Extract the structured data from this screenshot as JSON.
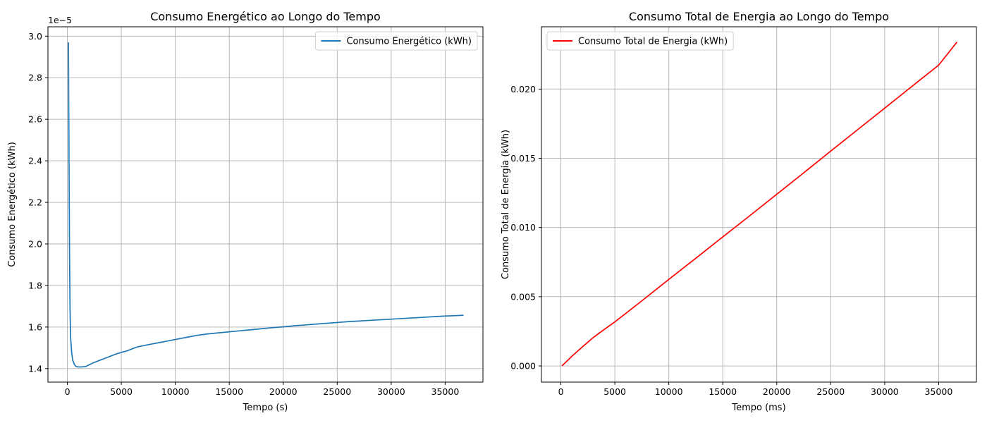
{
  "chart_data": [
    {
      "type": "line",
      "title": "Consumo Energético ao Longo do Tempo",
      "xlabel": "Tempo (s)",
      "ylabel": "Consumo Energético (kWh)",
      "offset_text": "1e−5",
      "xlim": [
        -1800,
        38500
      ],
      "ylim": [
        1.335e-05,
        3.045e-05
      ],
      "xticks": [
        0,
        5000,
        10000,
        15000,
        20000,
        25000,
        30000,
        35000
      ],
      "xtick_labels": [
        "0",
        "5000",
        "10000",
        "15000",
        "20000",
        "25000",
        "30000",
        "35000"
      ],
      "yticks": [
        1.4e-05,
        1.6e-05,
        1.8e-05,
        2e-05,
        2.2e-05,
        2.4e-05,
        2.6e-05,
        2.8e-05,
        3e-05
      ],
      "ytick_labels": [
        "1.4",
        "1.6",
        "1.8",
        "2.0",
        "2.2",
        "2.4",
        "2.6",
        "2.8",
        "3.0"
      ],
      "grid": true,
      "legend_position": "top-right",
      "series": [
        {
          "name": "Consumo Energético (kWh)",
          "color": "#1f77b4",
          "x": [
            100,
            150,
            200,
            250,
            300,
            400,
            500,
            650,
            800,
            1000,
            1300,
            1700,
            2000,
            2500,
            3000,
            3500,
            4000,
            4500,
            5000,
            5500,
            6000,
            6500,
            7000,
            7500,
            8000,
            8500,
            9000,
            10000,
            11000,
            12000,
            13000,
            14000,
            15000,
            16000,
            17000,
            18000,
            19000,
            20000,
            21000,
            22000,
            23000,
            24000,
            25000,
            26000,
            27000,
            28000,
            29000,
            30000,
            31000,
            32000,
            33000,
            34000,
            35000,
            36000,
            36700
          ],
          "y": [
            2.97e-05,
            2.45e-05,
            1.95e-05,
            1.68e-05,
            1.55e-05,
            1.475e-05,
            1.44e-05,
            1.42e-05,
            1.41e-05,
            1.408e-05,
            1.408e-05,
            1.41e-05,
            1.418e-05,
            1.43e-05,
            1.44e-05,
            1.45e-05,
            1.46e-05,
            1.47e-05,
            1.478e-05,
            1.485e-05,
            1.495e-05,
            1.505e-05,
            1.51e-05,
            1.515e-05,
            1.52e-05,
            1.525e-05,
            1.53e-05,
            1.54e-05,
            1.55e-05,
            1.56e-05,
            1.567e-05,
            1.572e-05,
            1.577e-05,
            1.582e-05,
            1.587e-05,
            1.592e-05,
            1.597e-05,
            1.601e-05,
            1.606e-05,
            1.61e-05,
            1.614e-05,
            1.618e-05,
            1.622e-05,
            1.626e-05,
            1.629e-05,
            1.632e-05,
            1.635e-05,
            1.638e-05,
            1.641e-05,
            1.644e-05,
            1.647e-05,
            1.65e-05,
            1.653e-05,
            1.655e-05,
            1.657e-05
          ]
        }
      ]
    },
    {
      "type": "line",
      "title": "Consumo Total de Energia ao Longo do Tempo",
      "xlabel": "Tempo (ms)",
      "ylabel": "Consumo Total de Energia (kWh)",
      "xlim": [
        -1800,
        38500
      ],
      "ylim": [
        -0.00117,
        0.0245
      ],
      "xticks": [
        0,
        5000,
        10000,
        15000,
        20000,
        25000,
        30000,
        35000
      ],
      "xtick_labels": [
        "0",
        "5000",
        "10000",
        "15000",
        "20000",
        "25000",
        "30000",
        "35000"
      ],
      "yticks": [
        0.0,
        0.005,
        0.01,
        0.015,
        0.02
      ],
      "ytick_labels": [
        "0.000",
        "0.005",
        "0.010",
        "0.015",
        "0.020"
      ],
      "grid": true,
      "legend_position": "top-left",
      "series": [
        {
          "name": "Consumo Total de Energia (kWh)",
          "color": "#ff0000",
          "x": [
            100,
            1000,
            2000,
            3000,
            3600,
            5000,
            7500,
            10000,
            12500,
            15000,
            17500,
            20000,
            22500,
            25000,
            27500,
            30000,
            32500,
            35000,
            36700
          ],
          "y": [
            0.0,
            0.00068,
            0.00138,
            0.00205,
            0.0024,
            0.00318,
            0.0047,
            0.00625,
            0.00778,
            0.00932,
            0.01085,
            0.0124,
            0.01395,
            0.01552,
            0.01707,
            0.01862,
            0.02018,
            0.02173,
            0.0234
          ]
        }
      ]
    }
  ]
}
